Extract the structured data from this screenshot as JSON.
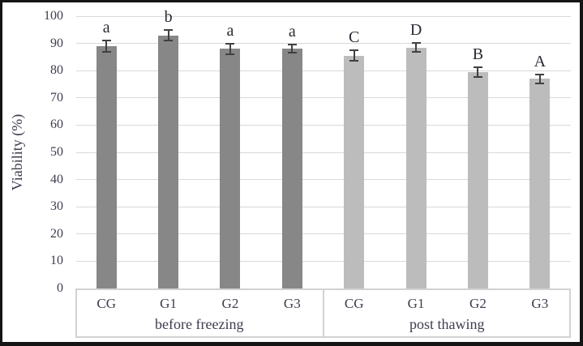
{
  "chart_data": {
    "type": "bar",
    "title": "",
    "xlabel": "",
    "ylabel": "Viability (%)",
    "ylim": [
      0,
      100
    ],
    "yticks": [
      0,
      10,
      20,
      30,
      40,
      50,
      60,
      70,
      80,
      90,
      100
    ],
    "grid": true,
    "legend_position": "none",
    "groups": [
      {
        "label": "before freezing",
        "bar_color": "#878787",
        "categories": [
          "CG",
          "G1",
          "G2",
          "G3"
        ],
        "values": [
          89,
          93,
          88,
          88
        ],
        "errors": [
          2,
          2,
          2,
          1.5
        ],
        "annotations": [
          "a",
          "b",
          "a",
          "a"
        ]
      },
      {
        "label": "post thawing",
        "bar_color": "#bcbcbc",
        "categories": [
          "CG",
          "G1",
          "G2",
          "G3"
        ],
        "values": [
          85.5,
          88.5,
          79.5,
          77
        ],
        "errors": [
          2,
          1.6,
          1.7,
          1.7
        ],
        "annotations": [
          "C",
          "D",
          "B",
          "A"
        ]
      }
    ]
  },
  "colors": {
    "background": "#ffffff",
    "frame": "#141414",
    "grid": "#d9d9d9",
    "axis_box_border": "#d2d2d2",
    "text": "#3d3d4f",
    "annotation_text": "#2a2a33",
    "error_bar": "#404040"
  }
}
